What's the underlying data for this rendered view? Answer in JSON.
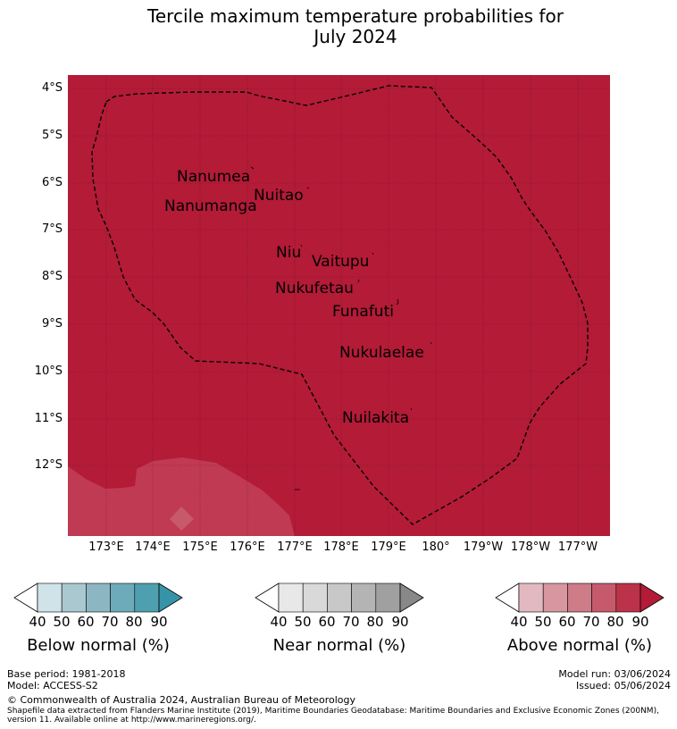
{
  "title_line1": "Tercile maximum temperature probabilities for",
  "title_line2": "July 2024",
  "colors": {
    "above_90": "#b31b37",
    "above_80_land": "#bf3a52",
    "coastline": "#000000"
  },
  "lat_labels": [
    "4°S",
    "5°S",
    "6°S",
    "7°S",
    "8°S",
    "9°S",
    "10°S",
    "11°S",
    "12°S"
  ],
  "lon_labels": [
    "173°E",
    "174°E",
    "175°E",
    "176°E",
    "177°E",
    "178°E",
    "179°E",
    "180°",
    "179°W",
    "178°W",
    "177°W"
  ],
  "islands": [
    "Nanumea",
    "Nuitao",
    "Nanumanga",
    "Niu",
    "Vaitupu",
    "Nukufetau",
    "Funafuti",
    "Nukulaelae",
    "Nuilakita"
  ],
  "colorbars": [
    {
      "title": "Below normal (%)",
      "ticks": [
        "40",
        "50",
        "60",
        "70",
        "80",
        "90"
      ],
      "colors": [
        "#ffffff",
        "#cfe3e8",
        "#aac8cf",
        "#8cb7c2",
        "#6eabba",
        "#4e9faf",
        "#3794a8"
      ]
    },
    {
      "title": "Near normal (%)",
      "ticks": [
        "40",
        "50",
        "60",
        "70",
        "80",
        "90"
      ],
      "colors": [
        "#ffffff",
        "#e8e8e8",
        "#d9d9d9",
        "#c8c8c8",
        "#b4b4b4",
        "#a0a0a0",
        "#888888"
      ]
    },
    {
      "title": "Above normal (%)",
      "ticks": [
        "40",
        "50",
        "60",
        "70",
        "80",
        "90"
      ],
      "colors": [
        "#ffffff",
        "#e2b9c0",
        "#d796a0",
        "#cd7c88",
        "#c65a6c",
        "#bb3249",
        "#b31b37"
      ]
    }
  ],
  "footer": {
    "base_period": "Base period: 1981-2018",
    "model": "Model: ACCESS-S2",
    "model_run": "Model run: 03/06/2024",
    "issued": "Issued: 05/06/2024",
    "copyright": "© Commonwealth of Australia 2024, Australian Bureau of Meteorology",
    "shapefile_line1": "Shapefile data extracted from Flanders Marine Institute (2019), Maritime Boundaries Geodatabase: Maritime Boundaries and Exclusive Economic Zones (200NM),",
    "shapefile_line2": "version 11. Available online at http://www.marineregions.org/."
  }
}
